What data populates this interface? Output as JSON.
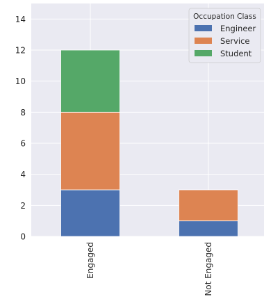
{
  "chart_data": {
    "type": "bar",
    "stacked": true,
    "categories": [
      "Engaged",
      "Not Engaged"
    ],
    "series": [
      {
        "name": "Engineer",
        "values": [
          3,
          1
        ],
        "color": "#4c72b0"
      },
      {
        "name": "Service",
        "values": [
          5,
          2
        ],
        "color": "#dd8452"
      },
      {
        "name": "Student",
        "values": [
          4,
          0
        ],
        "color": "#55a868"
      }
    ],
    "ylim": [
      0,
      15
    ],
    "yticks": [
      0,
      2,
      4,
      6,
      8,
      10,
      12,
      14
    ],
    "grid": true,
    "background": "#eaeaf2",
    "legend": {
      "title": "Occupation Class",
      "placement": "top-right"
    }
  }
}
